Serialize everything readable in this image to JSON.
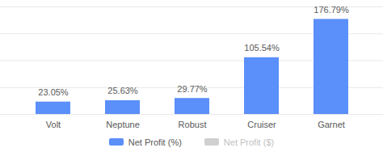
{
  "chart_data": {
    "type": "bar",
    "categories": [
      "Volt",
      "Neptune",
      "Robust",
      "Cruiser",
      "Garnet"
    ],
    "series": [
      {
        "name": "Net Profit (%)",
        "color": "#5b8ff9",
        "values": [
          23.05,
          25.63,
          29.77,
          105.54,
          176.79
        ],
        "value_labels": [
          "23.05%",
          "25.63%",
          "29.77%",
          "105.54%",
          "176.79%"
        ]
      },
      {
        "name": "Net Profit ($)",
        "color": "#d0d0d0",
        "values": [
          null,
          null,
          null,
          null,
          null
        ]
      }
    ],
    "ylim": [
      0,
      200
    ],
    "yticks": [
      0,
      50,
      100,
      150,
      200
    ],
    "grid": true,
    "data_labels": true,
    "tick_labels": "x",
    "legend": "bottom"
  }
}
